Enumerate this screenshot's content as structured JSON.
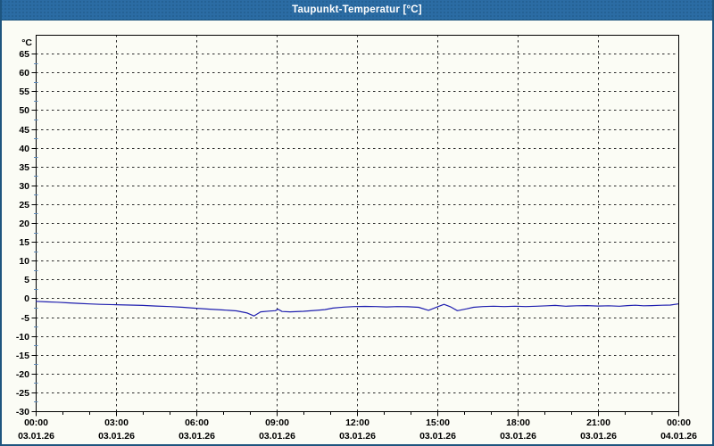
{
  "window": {
    "title": "Taupunkt-Temperatur [°C]",
    "titlebar_color": "#2B6CA4",
    "border_color": "#1E557F",
    "background_color": "#FBFCF5"
  },
  "chart_data": {
    "type": "line",
    "title": "Taupunkt-Temperatur [°C]",
    "ylabel": "°C",
    "xlabel": "",
    "grid": {
      "style": "dashed",
      "color": "#2b2b2b"
    },
    "legend": "none",
    "y_axis": {
      "unit_label": "°C",
      "min": -30,
      "max": 65,
      "top_value": 70,
      "major_step": 5,
      "minor_step": 2.5,
      "tick_labels": [
        "65",
        "60",
        "55",
        "50",
        "45",
        "40",
        "35",
        "30",
        "25",
        "20",
        "15",
        "10",
        "5",
        "0",
        "-5",
        "-10",
        "-15",
        "-20",
        "-25",
        "-30"
      ]
    },
    "x_axis": {
      "start_hour": 0,
      "end_hour": 24,
      "major_step_hours": 3,
      "minor_step_hours": 1,
      "ticks": [
        {
          "time": "00:00",
          "date": "03.01.26"
        },
        {
          "time": "03:00",
          "date": "03.01.26"
        },
        {
          "time": "06:00",
          "date": "03.01.26"
        },
        {
          "time": "09:00",
          "date": "03.01.26"
        },
        {
          "time": "12:00",
          "date": "03.01.26"
        },
        {
          "time": "15:00",
          "date": "03.01.26"
        },
        {
          "time": "18:00",
          "date": "03.01.26"
        },
        {
          "time": "21:00",
          "date": "03.01.26"
        },
        {
          "time": "00:00",
          "date": "04.01.26"
        }
      ]
    },
    "series": [
      {
        "name": "Taupunkt-Temperatur",
        "color": "#1F1FAF",
        "points": [
          [
            0,
            -0.8
          ],
          [
            0.4,
            -0.95
          ],
          [
            0.8,
            -1.05
          ],
          [
            1.2,
            -1.2
          ],
          [
            1.6,
            -1.35
          ],
          [
            2,
            -1.5
          ],
          [
            2.4,
            -1.6
          ],
          [
            3,
            -1.7
          ],
          [
            3.5,
            -1.8
          ],
          [
            4,
            -1.9
          ],
          [
            4.5,
            -2.05
          ],
          [
            5,
            -2.2
          ],
          [
            5.5,
            -2.4
          ],
          [
            6,
            -2.65
          ],
          [
            6.5,
            -2.9
          ],
          [
            7,
            -3.1
          ],
          [
            7.5,
            -3.35
          ],
          [
            7.9,
            -3.9
          ],
          [
            8.15,
            -4.7
          ],
          [
            8.4,
            -3.6
          ],
          [
            8.75,
            -3.4
          ],
          [
            8.95,
            -3.3
          ],
          [
            9.05,
            -2.9
          ],
          [
            9.2,
            -3.5
          ],
          [
            9.5,
            -3.6
          ],
          [
            10,
            -3.45
          ],
          [
            10.5,
            -3.2
          ],
          [
            10.8,
            -3.0
          ],
          [
            11.1,
            -2.6
          ],
          [
            11.5,
            -2.35
          ],
          [
            11.9,
            -2.2
          ],
          [
            12.3,
            -2.15
          ],
          [
            12.7,
            -2.2
          ],
          [
            13.1,
            -2.3
          ],
          [
            13.5,
            -2.2
          ],
          [
            13.9,
            -2.25
          ],
          [
            14.3,
            -2.4
          ],
          [
            14.67,
            -3.2
          ],
          [
            15,
            -2.3
          ],
          [
            15.25,
            -1.6
          ],
          [
            15.5,
            -2.3
          ],
          [
            15.75,
            -3.3
          ],
          [
            16.1,
            -2.8
          ],
          [
            16.35,
            -2.4
          ],
          [
            16.7,
            -2.2
          ],
          [
            17.1,
            -2.1
          ],
          [
            17.5,
            -2.2
          ],
          [
            17.9,
            -2.1
          ],
          [
            18.3,
            -2.2
          ],
          [
            18.7,
            -2.1
          ],
          [
            19.1,
            -2.0
          ],
          [
            19.4,
            -1.9
          ],
          [
            19.8,
            -2.1
          ],
          [
            20.2,
            -2.0
          ],
          [
            20.6,
            -1.95
          ],
          [
            21,
            -2.05
          ],
          [
            21.4,
            -2.0
          ],
          [
            21.8,
            -2.1
          ],
          [
            22.1,
            -1.95
          ],
          [
            22.4,
            -1.85
          ],
          [
            22.7,
            -2.0
          ],
          [
            23,
            -1.95
          ],
          [
            23.4,
            -1.85
          ],
          [
            23.7,
            -1.8
          ],
          [
            24,
            -1.5
          ]
        ]
      }
    ]
  }
}
